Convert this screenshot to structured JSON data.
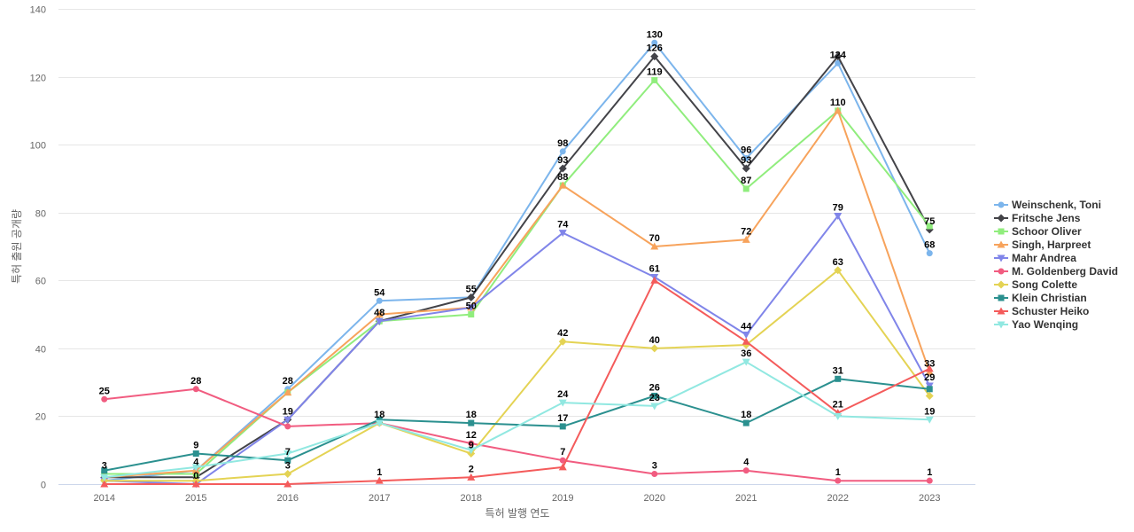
{
  "chart_data": {
    "type": "line",
    "title": "",
    "xlabel": "특허 발행 연도",
    "ylabel": "특허 출원 공개량",
    "x": [
      "2014",
      "2015",
      "2016",
      "2017",
      "2018",
      "2019",
      "2020",
      "2021",
      "2022",
      "2023"
    ],
    "ylim": [
      0,
      140
    ],
    "yticks": [
      0,
      20,
      40,
      60,
      80,
      100,
      120,
      140
    ],
    "grid": true,
    "legend_position": "right",
    "series": [
      {
        "name": "Weinschenk, Toni",
        "color": "#7cb5ec",
        "marker": "circle",
        "values": [
          1,
          4,
          28,
          54,
          55,
          98,
          130,
          96,
          124,
          68
        ]
      },
      {
        "name": "Fritsche Jens",
        "color": "#434348",
        "marker": "diamond",
        "values": [
          2,
          2,
          19,
          48,
          55,
          93,
          126,
          93,
          126,
          75
        ]
      },
      {
        "name": "Schoor Oliver",
        "color": "#90ed7d",
        "marker": "square",
        "values": [
          3,
          3,
          27,
          48,
          50,
          88,
          119,
          87,
          110,
          76
        ]
      },
      {
        "name": "Singh, Harpreet",
        "color": "#f7a35c",
        "marker": "triangle",
        "values": [
          2,
          4,
          27,
          50,
          52,
          88,
          70,
          72,
          110,
          33
        ]
      },
      {
        "name": "Mahr Andrea",
        "color": "#8085e9",
        "marker": "triangle-down",
        "values": [
          1,
          0,
          19,
          48,
          52,
          74,
          61,
          44,
          79,
          29
        ]
      },
      {
        "name": "M. Goldenberg David",
        "color": "#f15c80",
        "marker": "circle",
        "values": [
          25,
          28,
          17,
          18,
          12,
          7,
          3,
          4,
          1,
          1
        ]
      },
      {
        "name": "Song Colette",
        "color": "#e4d354",
        "marker": "diamond",
        "values": [
          1,
          1,
          3,
          18,
          9,
          42,
          40,
          41,
          63,
          26
        ]
      },
      {
        "name": "Klein Christian",
        "color": "#2b908f",
        "marker": "square",
        "values": [
          4,
          9,
          7,
          19,
          18,
          17,
          26,
          18,
          31,
          28
        ]
      },
      {
        "name": "Schuster Heiko",
        "color": "#f45b5b",
        "marker": "triangle",
        "values": [
          0,
          0,
          0,
          1,
          2,
          5,
          60,
          42,
          21,
          34
        ]
      },
      {
        "name": "Yao Wenqing",
        "color": "#91e8e1",
        "marker": "triangle-down",
        "values": [
          2,
          5,
          9,
          18,
          10,
          24,
          23,
          36,
          20,
          19
        ]
      }
    ],
    "data_labels": [
      {
        "x": "2014",
        "value": 3
      },
      {
        "x": "2014",
        "value": 25
      },
      {
        "x": "2015",
        "value": 9
      },
      {
        "x": "2015",
        "value": 4
      },
      {
        "x": "2015",
        "value": 0
      },
      {
        "x": "2015",
        "value": 28
      },
      {
        "x": "2016",
        "value": 28
      },
      {
        "x": "2016",
        "value": 19
      },
      {
        "x": "2016",
        "value": 7
      },
      {
        "x": "2016",
        "value": 3
      },
      {
        "x": "2017",
        "value": 54
      },
      {
        "x": "2017",
        "value": 48
      },
      {
        "x": "2017",
        "value": 18
      },
      {
        "x": "2017",
        "value": 1
      },
      {
        "x": "2018",
        "value": 55
      },
      {
        "x": "2018",
        "value": 50
      },
      {
        "x": "2018",
        "value": 18
      },
      {
        "x": "2018",
        "value": 12
      },
      {
        "x": "2018",
        "value": 9
      },
      {
        "x": "2018",
        "value": 2
      },
      {
        "x": "2019",
        "value": 98
      },
      {
        "x": "2019",
        "value": 93
      },
      {
        "x": "2019",
        "value": 88
      },
      {
        "x": "2019",
        "value": 74
      },
      {
        "x": "2019",
        "value": 42
      },
      {
        "x": "2019",
        "value": 24
      },
      {
        "x": "2019",
        "value": 17
      },
      {
        "x": "2019",
        "value": 7
      },
      {
        "x": "2020",
        "value": 130
      },
      {
        "x": "2020",
        "value": 126
      },
      {
        "x": "2020",
        "value": 119
      },
      {
        "x": "2020",
        "value": 70
      },
      {
        "x": "2020",
        "value": 61
      },
      {
        "x": "2020",
        "value": 40
      },
      {
        "x": "2020",
        "value": 26
      },
      {
        "x": "2020",
        "value": 23
      },
      {
        "x": "2020",
        "value": 3
      },
      {
        "x": "2021",
        "value": 96
      },
      {
        "x": "2021",
        "value": 93
      },
      {
        "x": "2021",
        "value": 87
      },
      {
        "x": "2021",
        "value": 72
      },
      {
        "x": "2021",
        "value": 44
      },
      {
        "x": "2021",
        "value": 36
      },
      {
        "x": "2021",
        "value": 18
      },
      {
        "x": "2021",
        "value": 4
      },
      {
        "x": "2022",
        "value": 124
      },
      {
        "x": "2022",
        "value": 110
      },
      {
        "x": "2022",
        "value": 79
      },
      {
        "x": "2022",
        "value": 63
      },
      {
        "x": "2022",
        "value": 31
      },
      {
        "x": "2022",
        "value": 21
      },
      {
        "x": "2022",
        "value": 1
      },
      {
        "x": "2023",
        "value": 75
      },
      {
        "x": "2023",
        "value": 68
      },
      {
        "x": "2023",
        "value": 33
      },
      {
        "x": "2023",
        "value": 29
      },
      {
        "x": "2023",
        "value": 19
      },
      {
        "x": "2023",
        "value": 1
      }
    ]
  }
}
